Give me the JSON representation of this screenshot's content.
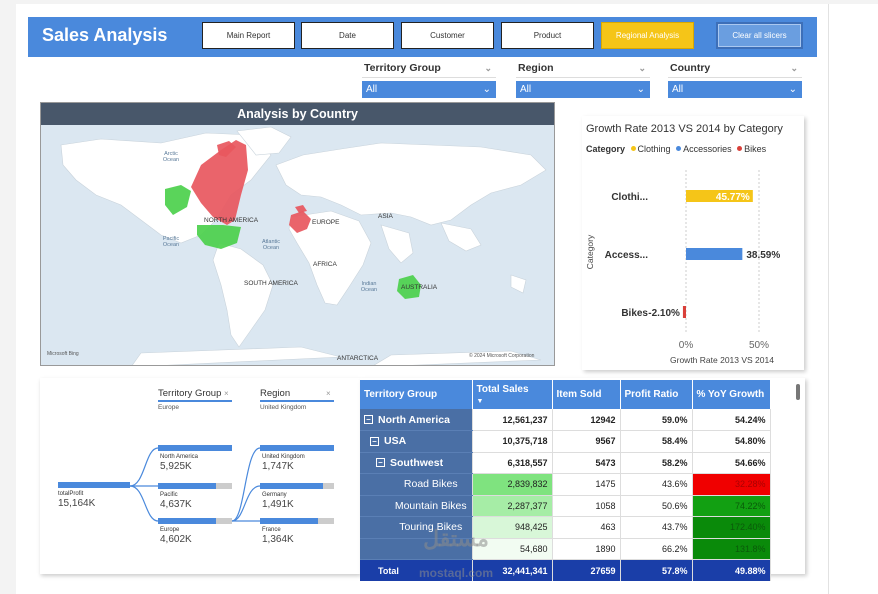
{
  "header": {
    "title": "Sales Analysis",
    "nav": [
      "Main Report",
      "Date",
      "Customer",
      "Product",
      "Regional Analysis"
    ],
    "active_nav": "Regional Analysis",
    "clear_label": "Clear all slicers",
    "color": "#4a89dc"
  },
  "slicers": [
    {
      "label": "Territory Group",
      "value": "All"
    },
    {
      "label": "Region",
      "value": "All"
    },
    {
      "label": "Country",
      "value": "All"
    }
  ],
  "map": {
    "title": "Analysis by Country",
    "continents": [
      "NORTH AMERICA",
      "EUROPE",
      "ASIA",
      "AFRICA",
      "SOUTH AMERICA",
      "AUSTRALIA",
      "ANTARCTICA"
    ],
    "oceans": [
      "Arctic Ocean",
      "Pacific Ocean",
      "Atlantic Ocean",
      "Indian Ocean"
    ],
    "brand": "Microsoft Bing",
    "copyright": "© 2024 Microsoft Corporation",
    "colors": {
      "negative": "#e8575e",
      "positive": "#4cd04c"
    }
  },
  "growth": {
    "title": "Growth Rate 2013 VS 2014 by Category",
    "legend_title": "Category",
    "legend": [
      {
        "name": "Clothing",
        "color": "#f5c518"
      },
      {
        "name": "Accessories",
        "color": "#4a89dc"
      },
      {
        "name": "Bikes",
        "color": "#d9403a"
      }
    ],
    "ylabel": "Category",
    "xlabel": "Growth Rate 2013 VS 2014",
    "xticks": [
      "0%",
      "50%"
    ]
  },
  "chart_data": {
    "type": "bar",
    "orientation": "horizontal",
    "title": "Growth Rate 2013 VS 2014 by Category",
    "categories": [
      "Clothi...",
      "Access...",
      "Bikes"
    ],
    "values": [
      45.77,
      38.59,
      -2.1
    ],
    "labels": [
      "45.77%",
      "38.59%",
      "-2.10%"
    ],
    "colors": [
      "#f5c518",
      "#4a89dc",
      "#d9403a"
    ],
    "xlabel": "Growth Rate 2013 VS 2014",
    "ylabel": "Category",
    "xlim": [
      -5,
      55
    ]
  },
  "decomp": {
    "headers": [
      {
        "title": "Territory Group",
        "sub": "Europe"
      },
      {
        "title": "Region",
        "sub": "United Kingdom"
      }
    ],
    "root": {
      "label": "totalProfit",
      "value": "15,164K"
    },
    "level1": [
      {
        "label": "North America",
        "value": "5,925K",
        "share": 1.0
      },
      {
        "label": "Pacific",
        "value": "4,637K",
        "share": 0.78
      },
      {
        "label": "Europe",
        "value": "4,602K",
        "share": 0.78
      }
    ],
    "level2": [
      {
        "label": "United Kingdom",
        "value": "1,747K",
        "share": 1.0
      },
      {
        "label": "Germany",
        "value": "1,491K",
        "share": 0.85
      },
      {
        "label": "France",
        "value": "1,364K",
        "share": 0.78
      }
    ]
  },
  "table": {
    "columns": [
      "Territory Group",
      "Total Sales",
      "Item Sold",
      "Profit Ratio",
      "% YoY Growth"
    ],
    "rows": [
      {
        "name": "North America",
        "level": 0,
        "sales": "12,561,237",
        "items": "12942",
        "profit": "59.0%",
        "yoy": "54.24%",
        "bold": true
      },
      {
        "name": "USA",
        "level": 1,
        "sales": "10,375,718",
        "items": "9567",
        "profit": "58.4%",
        "yoy": "54.80%",
        "bold": true
      },
      {
        "name": "Southwest",
        "level": 2,
        "sales": "6,318,557",
        "items": "5473",
        "profit": "58.2%",
        "yoy": "54.66%",
        "bold": true
      },
      {
        "name": "Road Bikes",
        "level": 3,
        "sales": "2,839,832",
        "items": "1475",
        "profit": "43.6%",
        "yoy": "32.28%",
        "bold": false,
        "sales_bg": "#7fe37f",
        "yoy_bg": "#f00000"
      },
      {
        "name": "Mountain Bikes",
        "level": 3,
        "sales": "2,287,377",
        "items": "1058",
        "profit": "50.6%",
        "yoy": "74.22%",
        "bold": false,
        "sales_bg": "#a6eda6",
        "yoy_bg": "#12a012"
      },
      {
        "name": "Touring Bikes",
        "level": 3,
        "sales": "948,425",
        "items": "463",
        "profit": "43.7%",
        "yoy": "172.40%",
        "bold": false,
        "sales_bg": "#d8f7d8",
        "yoy_bg": "#0a8a0a"
      },
      {
        "name": "",
        "level": 3,
        "sales": "54,680",
        "items": "1890",
        "profit": "66.2%",
        "yoy": "131.8%",
        "bold": false,
        "sales_bg": "#f2fcf2",
        "yoy_bg": "#0a8a0a"
      }
    ],
    "total": {
      "name": "Total",
      "sales": "32,441,341",
      "items": "27659",
      "profit": "57.8%",
      "yoy": "49.88%"
    }
  },
  "watermark": {
    "arabic": "مستقل",
    "latin": "mostaql.com"
  }
}
